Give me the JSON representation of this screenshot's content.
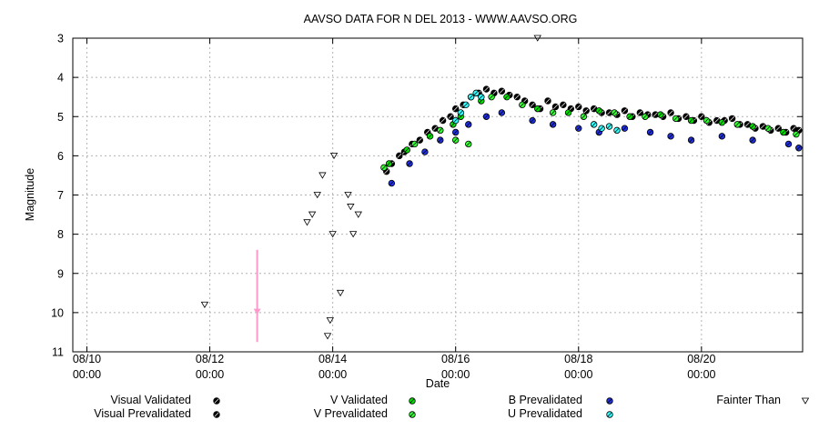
{
  "colors": {
    "visual_validated": "#000000",
    "visual_prevalidated": "#000000",
    "v_validated": "#00e600",
    "v_prevalidated": "#33ff33",
    "b_prevalidated": "#1f2fe0",
    "u_prevalidated": "#33ffff",
    "fainter_than": "#000000",
    "pink_marker": "#ff99cc",
    "grid": "#b4b4b4"
  },
  "chart_data": {
    "type": "scatter",
    "title": "AAVSO DATA FOR N DEL 2013 - WWW.AAVSO.ORG",
    "xlabel": "Date",
    "ylabel": "Magnitude",
    "y_inverted": true,
    "ylim": [
      3,
      11
    ],
    "xlim": [
      "2013-08-09T18:30",
      "2013-08-21T15:30"
    ],
    "grid": true,
    "legend_position": "bottom",
    "y_ticks": [
      "3",
      "4",
      "5",
      "6",
      "7",
      "8",
      "9",
      "10",
      "11"
    ],
    "x_ticks": [
      {
        "date": "2013-08-10T00:00",
        "label1": "08/10",
        "label2": "00:00"
      },
      {
        "date": "2013-08-12T00:00",
        "label1": "08/12",
        "label2": "00:00"
      },
      {
        "date": "2013-08-14T00:00",
        "label1": "08/14",
        "label2": "00:00"
      },
      {
        "date": "2013-08-16T00:00",
        "label1": "08/16",
        "label2": "00:00"
      },
      {
        "date": "2013-08-18T00:00",
        "label1": "08/18",
        "label2": "00:00"
      },
      {
        "date": "2013-08-20T00:00",
        "label1": "08/20",
        "label2": "00:00"
      }
    ],
    "series": [
      {
        "key": "visual_validated",
        "name": "Visual Validated",
        "marker": "circle",
        "points": [
          [
            "2013-08-14T21:00",
            6.4
          ],
          [
            "2013-08-15T02:00",
            6.0
          ],
          [
            "2013-08-15T07:00",
            5.7
          ],
          [
            "2013-08-15T13:00",
            5.4
          ],
          [
            "2013-08-15T19:00",
            5.1
          ],
          [
            "2013-08-16T00:00",
            4.8
          ],
          [
            "2013-08-16T06:00",
            4.5
          ],
          [
            "2013-08-16T12:00",
            4.3
          ],
          [
            "2013-08-16T18:00",
            4.35
          ],
          [
            "2013-08-17T00:00",
            4.5
          ],
          [
            "2013-08-17T06:00",
            4.7
          ],
          [
            "2013-08-17T12:00",
            4.6
          ],
          [
            "2013-08-17T18:00",
            4.7
          ],
          [
            "2013-08-18T00:00",
            4.75
          ],
          [
            "2013-08-18T06:00",
            4.8
          ],
          [
            "2013-08-18T12:00",
            4.9
          ],
          [
            "2013-08-18T18:00",
            4.85
          ],
          [
            "2013-08-19T00:00",
            4.9
          ],
          [
            "2013-08-19T06:00",
            4.95
          ],
          [
            "2013-08-19T12:00",
            4.9
          ],
          [
            "2013-08-19T18:00",
            5.0
          ],
          [
            "2013-08-20T00:00",
            5.0
          ],
          [
            "2013-08-20T06:00",
            5.1
          ],
          [
            "2013-08-20T12:00",
            5.05
          ],
          [
            "2013-08-20T18:00",
            5.2
          ],
          [
            "2013-08-21T00:00",
            5.25
          ],
          [
            "2013-08-21T06:00",
            5.3
          ],
          [
            "2013-08-21T12:00",
            5.3
          ]
        ]
      },
      {
        "key": "visual_prevalidated",
        "name": "Visual Prevalidated",
        "marker": "circle",
        "points": [
          [
            "2013-08-14T23:00",
            6.2
          ],
          [
            "2013-08-15T04:00",
            5.9
          ],
          [
            "2013-08-15T10:00",
            5.6
          ],
          [
            "2013-08-15T16:00",
            5.3
          ],
          [
            "2013-08-15T22:00",
            5.0
          ],
          [
            "2013-08-16T03:00",
            4.7
          ],
          [
            "2013-08-16T09:00",
            4.4
          ],
          [
            "2013-08-16T15:00",
            4.4
          ],
          [
            "2013-08-16T21:00",
            4.45
          ],
          [
            "2013-08-17T03:00",
            4.6
          ],
          [
            "2013-08-17T09:00",
            4.8
          ],
          [
            "2013-08-17T15:00",
            4.75
          ],
          [
            "2013-08-17T21:00",
            4.8
          ],
          [
            "2013-08-18T03:00",
            4.85
          ],
          [
            "2013-08-18T09:00",
            4.9
          ],
          [
            "2013-08-18T15:00",
            4.95
          ],
          [
            "2013-08-18T21:00",
            5.0
          ],
          [
            "2013-08-19T03:00",
            4.95
          ],
          [
            "2013-08-19T09:00",
            5.0
          ],
          [
            "2013-08-19T15:00",
            5.05
          ],
          [
            "2013-08-19T21:00",
            5.1
          ],
          [
            "2013-08-20T03:00",
            5.15
          ],
          [
            "2013-08-20T09:00",
            5.1
          ],
          [
            "2013-08-20T15:00",
            5.2
          ],
          [
            "2013-08-20T21:00",
            5.3
          ],
          [
            "2013-08-21T03:00",
            5.35
          ],
          [
            "2013-08-21T09:00",
            5.4
          ],
          [
            "2013-08-21T14:00",
            5.35
          ]
        ]
      },
      {
        "key": "v_validated",
        "name": "V Validated",
        "marker": "circle",
        "points": [
          [
            "2013-08-14T22:00",
            6.2
          ],
          [
            "2013-08-15T05:00",
            5.85
          ],
          [
            "2013-08-15T14:00",
            5.5
          ],
          [
            "2013-08-15T23:00",
            5.2
          ],
          [
            "2013-08-16T02:00",
            5.0
          ],
          [
            "2013-08-16T10:00",
            4.6
          ],
          [
            "2013-08-16T20:00",
            4.5
          ],
          [
            "2013-08-17T08:00",
            4.8
          ],
          [
            "2013-08-17T20:00",
            4.9
          ],
          [
            "2013-08-18T08:00",
            4.85
          ],
          [
            "2013-08-18T20:00",
            5.0
          ],
          [
            "2013-08-19T08:00",
            4.95
          ],
          [
            "2013-08-19T20:00",
            5.1
          ],
          [
            "2013-08-20T08:00",
            5.15
          ],
          [
            "2013-08-20T20:00",
            5.25
          ],
          [
            "2013-08-21T08:00",
            5.4
          ]
        ]
      },
      {
        "key": "v_prevalidated",
        "name": "V Prevalidated",
        "marker": "circle",
        "points": [
          [
            "2013-08-14T20:00",
            6.3
          ],
          [
            "2013-08-15T08:00",
            5.7
          ],
          [
            "2013-08-15T18:00",
            5.35
          ],
          [
            "2013-08-16T00:00",
            5.6
          ],
          [
            "2013-08-16T05:00",
            5.7
          ],
          [
            "2013-08-16T14:00",
            4.5
          ],
          [
            "2013-08-17T02:00",
            4.7
          ],
          [
            "2013-08-17T14:00",
            4.9
          ],
          [
            "2013-08-18T02:00",
            5.0
          ],
          [
            "2013-08-18T14:00",
            4.9
          ],
          [
            "2013-08-19T02:00",
            5.0
          ],
          [
            "2013-08-19T14:00",
            5.05
          ],
          [
            "2013-08-20T02:00",
            5.1
          ],
          [
            "2013-08-20T14:00",
            5.2
          ],
          [
            "2013-08-21T02:00",
            5.3
          ],
          [
            "2013-08-21T13:00",
            5.45
          ]
        ]
      },
      {
        "key": "b_prevalidated",
        "name": "B Prevalidated",
        "marker": "circle",
        "points": [
          [
            "2013-08-14T23:00",
            6.7
          ],
          [
            "2013-08-15T06:00",
            6.2
          ],
          [
            "2013-08-15T12:00",
            5.9
          ],
          [
            "2013-08-15T18:00",
            5.6
          ],
          [
            "2013-08-16T00:00",
            5.4
          ],
          [
            "2013-08-16T05:00",
            5.2
          ],
          [
            "2013-08-16T12:00",
            5.0
          ],
          [
            "2013-08-16T18:00",
            4.9
          ],
          [
            "2013-08-17T06:00",
            5.1
          ],
          [
            "2013-08-17T14:00",
            5.2
          ],
          [
            "2013-08-18T00:00",
            5.3
          ],
          [
            "2013-08-18T08:00",
            5.4
          ],
          [
            "2013-08-18T18:00",
            5.3
          ],
          [
            "2013-08-19T04:00",
            5.4
          ],
          [
            "2013-08-19T12:00",
            5.5
          ],
          [
            "2013-08-19T20:00",
            5.6
          ],
          [
            "2013-08-20T08:00",
            5.5
          ],
          [
            "2013-08-20T20:00",
            5.6
          ],
          [
            "2013-08-21T10:00",
            5.7
          ],
          [
            "2013-08-21T14:00",
            5.8
          ]
        ]
      },
      {
        "key": "u_prevalidated",
        "name": "U Prevalidated",
        "marker": "circle",
        "points": [
          [
            "2013-08-16T00:00",
            5.1
          ],
          [
            "2013-08-16T02:00",
            4.9
          ],
          [
            "2013-08-16T04:00",
            4.7
          ],
          [
            "2013-08-16T06:00",
            4.5
          ],
          [
            "2013-08-16T08:00",
            4.4
          ],
          [
            "2013-08-16T10:00",
            4.5
          ],
          [
            "2013-08-18T06:00",
            5.2
          ],
          [
            "2013-08-18T09:00",
            5.3
          ],
          [
            "2013-08-18T12:00",
            5.25
          ],
          [
            "2013-08-18T15:00",
            5.35
          ]
        ]
      },
      {
        "key": "fainter_than",
        "name": "Fainter Than",
        "marker": "triangle-down",
        "points": [
          [
            "2013-08-11T22:00",
            9.8
          ],
          [
            "2013-08-13T14:00",
            7.7
          ],
          [
            "2013-08-13T16:00",
            7.5
          ],
          [
            "2013-08-13T18:00",
            7.0
          ],
          [
            "2013-08-13T20:00",
            6.5
          ],
          [
            "2013-08-13T22:00",
            10.6
          ],
          [
            "2013-08-13T23:00",
            10.2
          ],
          [
            "2013-08-14T00:00",
            8.0
          ],
          [
            "2013-08-14T00:30",
            6.0
          ],
          [
            "2013-08-14T03:00",
            9.5
          ],
          [
            "2013-08-14T06:00",
            7.0
          ],
          [
            "2013-08-14T07:00",
            7.3
          ],
          [
            "2013-08-14T08:00",
            8.0
          ],
          [
            "2013-08-14T10:00",
            7.5
          ],
          [
            "2013-08-17T08:00",
            3.0
          ]
        ]
      }
    ]
  }
}
